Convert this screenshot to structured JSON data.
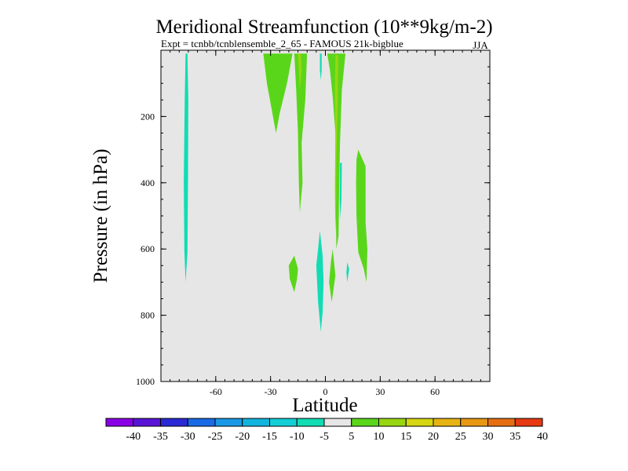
{
  "chart_data": {
    "type": "contour",
    "title": "Meridional Streamfunction (10**9kg/m-2)",
    "subtitle_left": "Expt = tcnbb/tcnbl",
    "subtitle_overlap": "ensemble_2_65 - FAMOUS 21k-bigblue",
    "season": "JJA",
    "xlabel": "Latitude",
    "ylabel": "Pressure (in hPa)",
    "xlim": [
      -90,
      90
    ],
    "ylim": [
      1000,
      0
    ],
    "x_ticks": [
      -60,
      -30,
      0,
      30,
      60
    ],
    "x_tick_labels": [
      "-60",
      "-30",
      "0",
      "30",
      "60"
    ],
    "y_ticks": [
      200,
      400,
      600,
      800,
      1000
    ],
    "y_tick_labels": [
      "200",
      "400",
      "600",
      "800",
      "1000"
    ],
    "background_level_color": "#e6e6e6",
    "colorbar": {
      "labels": [
        "-40",
        "-35",
        "-30",
        "-25",
        "-20",
        "-15",
        "-10",
        "-5",
        "5",
        "10",
        "15",
        "20",
        "25",
        "30",
        "35",
        "40"
      ],
      "colors": [
        "#8a00e6",
        "#5a14d6",
        "#2a2ad6",
        "#1a6ae6",
        "#1a98e6",
        "#12b4de",
        "#12cfd6",
        "#12dcb4",
        "#e6e6e6",
        "#5ad61a",
        "#98d612",
        "#d6d612",
        "#e6b412",
        "#e69812",
        "#e66e12",
        "#e63a12"
      ]
    },
    "regions": [
      {
        "level": -5,
        "color": "#12dcb4",
        "pts": [
          [
            -76.5,
            10
          ],
          [
            -75.5,
            10
          ],
          [
            -75,
            150
          ],
          [
            -75.2,
            400
          ],
          [
            -75.5,
            610
          ],
          [
            -76.5,
            700
          ],
          [
            -77.2,
            600
          ],
          [
            -77.5,
            400
          ],
          [
            -77,
            150
          ]
        ]
      },
      {
        "level": 5,
        "color": "#5ad61a",
        "pts": [
          [
            -34,
            10
          ],
          [
            -18,
            10
          ],
          [
            -21,
            100
          ],
          [
            -25,
            190
          ],
          [
            -27,
            250
          ],
          [
            -29,
            190
          ],
          [
            -32,
            100
          ]
        ]
      },
      {
        "level": 5,
        "color": "#5ad61a",
        "pts": [
          [
            -17,
            10
          ],
          [
            -10,
            10
          ],
          [
            -11,
            150
          ],
          [
            -13,
            280
          ],
          [
            -12.5,
            400
          ],
          [
            -14,
            490
          ],
          [
            -14.5,
            400
          ],
          [
            -15,
            250
          ],
          [
            -16,
            120
          ]
        ]
      },
      {
        "level": 10,
        "color": "#98d612",
        "pts": [
          [
            -15,
            10
          ],
          [
            -13.5,
            10
          ],
          [
            -13,
            60
          ],
          [
            -14,
            120
          ],
          [
            -14.5,
            60
          ]
        ]
      },
      {
        "level": 5,
        "color": "#5ad61a",
        "pts": [
          [
            1,
            10
          ],
          [
            11,
            10
          ],
          [
            9,
            120
          ],
          [
            8,
            280
          ],
          [
            7.5,
            420
          ],
          [
            7.2,
            560
          ],
          [
            6,
            600
          ],
          [
            5.5,
            400
          ],
          [
            5.5,
            250
          ],
          [
            4,
            140
          ],
          [
            2.5,
            60
          ]
        ]
      },
      {
        "level": 10,
        "color": "#98d612",
        "pts": [
          [
            5.5,
            15
          ],
          [
            7,
            15
          ],
          [
            6.8,
            150
          ],
          [
            6,
            350
          ],
          [
            5.8,
            500
          ],
          [
            5.5,
            550
          ],
          [
            5.2,
            420
          ],
          [
            5.5,
            250
          ],
          [
            5.2,
            120
          ]
        ]
      },
      {
        "level": -5,
        "color": "#12dcb4",
        "pts": [
          [
            -3,
            10
          ],
          [
            -2,
            10
          ],
          [
            -2,
            60
          ],
          [
            -2.5,
            90
          ],
          [
            -3,
            60
          ]
        ]
      },
      {
        "level": -5,
        "color": "#12dcb4",
        "pts": [
          [
            8,
            340
          ],
          [
            9,
            340
          ],
          [
            8.8,
            450
          ],
          [
            8.2,
            510
          ],
          [
            7.8,
            450
          ]
        ]
      },
      {
        "level": 5,
        "color": "#5ad61a",
        "pts": [
          [
            17,
            330
          ],
          [
            18,
            300
          ],
          [
            22,
            350
          ],
          [
            22,
            520
          ],
          [
            23,
            600
          ],
          [
            22.5,
            700
          ],
          [
            21,
            660
          ],
          [
            18,
            610
          ],
          [
            17,
            500
          ],
          [
            16.8,
            400
          ]
        ]
      },
      {
        "level": 5,
        "color": "#5ad61a",
        "pts": [
          [
            -20,
            650
          ],
          [
            -17,
            620
          ],
          [
            -15,
            660
          ],
          [
            -15.5,
            690
          ],
          [
            -17,
            730
          ],
          [
            -19.5,
            690
          ]
        ]
      },
      {
        "level": -5,
        "color": "#12dcb4",
        "pts": [
          [
            -3,
            545
          ],
          [
            -1.5,
            620
          ],
          [
            -1,
            700
          ],
          [
            -1.5,
            790
          ],
          [
            -2.5,
            850
          ],
          [
            -4,
            760
          ],
          [
            -5,
            650
          ],
          [
            -4,
            600
          ]
        ]
      },
      {
        "level": 5,
        "color": "#5ad61a",
        "pts": [
          [
            4,
            600
          ],
          [
            5.5,
            680
          ],
          [
            3.5,
            760
          ],
          [
            2,
            700
          ],
          [
            3,
            640
          ]
        ]
      },
      {
        "level": -5,
        "color": "#12dcb4",
        "pts": [
          [
            12,
            640
          ],
          [
            13,
            660
          ],
          [
            12.5,
            680
          ],
          [
            12,
            700
          ],
          [
            11.5,
            670
          ]
        ]
      }
    ]
  }
}
